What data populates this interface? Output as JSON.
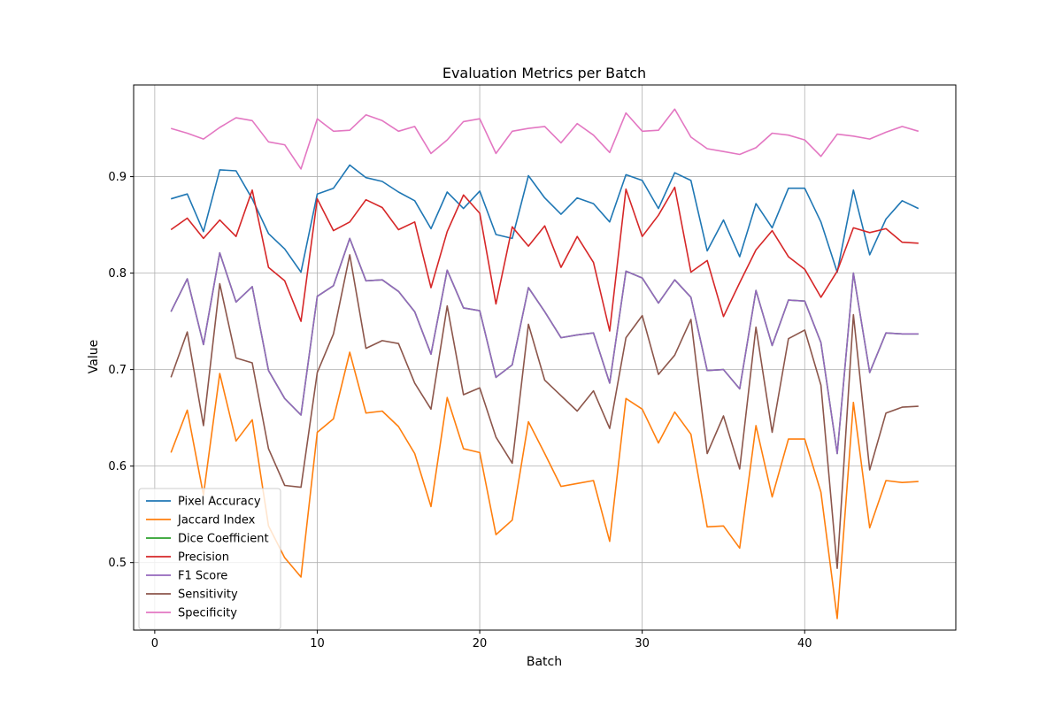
{
  "chart_data": {
    "type": "line",
    "title": "Evaluation Metrics per Batch",
    "xlabel": "Batch",
    "ylabel": "Value",
    "xlim": [
      -1.3,
      49.3
    ],
    "ylim": [
      0.43,
      0.995
    ],
    "xticks": [
      0,
      10,
      20,
      30,
      40
    ],
    "yticks": [
      0.5,
      0.6,
      0.7,
      0.8,
      0.9
    ],
    "ytick_labels": [
      "0.5",
      "0.6",
      "0.7",
      "0.8",
      "0.9"
    ],
    "grid": true,
    "legend_position": "lower-left",
    "x": [
      1,
      2,
      3,
      4,
      5,
      6,
      7,
      8,
      9,
      10,
      11,
      12,
      13,
      14,
      15,
      16,
      17,
      18,
      19,
      20,
      21,
      22,
      23,
      24,
      25,
      26,
      27,
      28,
      29,
      30,
      31,
      32,
      33,
      34,
      35,
      36,
      37,
      38,
      39,
      40,
      41,
      42,
      43,
      44,
      45,
      46,
      47
    ],
    "series": [
      {
        "name": "Pixel Accuracy",
        "color": "#1f77b4",
        "values": [
          0.877,
          0.882,
          0.843,
          0.907,
          0.906,
          0.877,
          0.841,
          0.825,
          0.801,
          0.882,
          0.888,
          0.912,
          0.899,
          0.895,
          0.884,
          0.875,
          0.846,
          0.884,
          0.867,
          0.885,
          0.84,
          0.836,
          0.901,
          0.878,
          0.861,
          0.878,
          0.872,
          0.853,
          0.902,
          0.896,
          0.867,
          0.904,
          0.896,
          0.823,
          0.855,
          0.817,
          0.872,
          0.847,
          0.888,
          0.888,
          0.853,
          0.801,
          0.886,
          0.819,
          0.856,
          0.875,
          0.867
        ]
      },
      {
        "name": "Jaccard Index",
        "color": "#ff7f0e",
        "values": [
          0.614,
          0.658,
          0.57,
          0.696,
          0.626,
          0.648,
          0.538,
          0.505,
          0.485,
          0.635,
          0.649,
          0.718,
          0.655,
          0.657,
          0.641,
          0.613,
          0.558,
          0.671,
          0.618,
          0.614,
          0.529,
          0.544,
          0.646,
          0.613,
          0.579,
          0.582,
          0.585,
          0.522,
          0.67,
          0.659,
          0.624,
          0.656,
          0.633,
          0.537,
          0.538,
          0.515,
          0.642,
          0.568,
          0.628,
          0.628,
          0.573,
          0.442,
          0.666,
          0.536,
          0.585,
          0.583,
          0.584
        ]
      },
      {
        "name": "Dice Coefficient",
        "color": "#2ca02c",
        "values": [
          0.76,
          0.794,
          0.726,
          0.821,
          0.77,
          0.786,
          0.699,
          0.67,
          0.653,
          0.776,
          0.787,
          0.836,
          0.792,
          0.793,
          0.781,
          0.76,
          0.716,
          0.803,
          0.764,
          0.761,
          0.692,
          0.705,
          0.785,
          0.76,
          0.733,
          0.736,
          0.738,
          0.686,
          0.802,
          0.795,
          0.769,
          0.793,
          0.775,
          0.699,
          0.7,
          0.68,
          0.782,
          0.725,
          0.772,
          0.771,
          0.728,
          0.613,
          0.8,
          0.697,
          0.738,
          0.737,
          0.737
        ]
      },
      {
        "name": "Precision",
        "color": "#d62728",
        "values": [
          0.845,
          0.857,
          0.836,
          0.855,
          0.838,
          0.886,
          0.806,
          0.792,
          0.75,
          0.877,
          0.844,
          0.853,
          0.876,
          0.868,
          0.845,
          0.853,
          0.785,
          0.843,
          0.881,
          0.862,
          0.768,
          0.848,
          0.828,
          0.849,
          0.806,
          0.838,
          0.811,
          0.74,
          0.887,
          0.838,
          0.86,
          0.889,
          0.801,
          0.813,
          0.755,
          0.79,
          0.824,
          0.844,
          0.817,
          0.804,
          0.775,
          0.802,
          0.847,
          0.842,
          0.846,
          0.832,
          0.831
        ]
      },
      {
        "name": "F1 Score",
        "color": "#9467bd",
        "values": [
          0.76,
          0.794,
          0.726,
          0.821,
          0.77,
          0.786,
          0.699,
          0.67,
          0.653,
          0.776,
          0.787,
          0.836,
          0.792,
          0.793,
          0.781,
          0.76,
          0.716,
          0.803,
          0.764,
          0.761,
          0.692,
          0.705,
          0.785,
          0.76,
          0.733,
          0.736,
          0.738,
          0.686,
          0.802,
          0.795,
          0.769,
          0.793,
          0.775,
          0.699,
          0.7,
          0.68,
          0.782,
          0.725,
          0.772,
          0.771,
          0.728,
          0.613,
          0.8,
          0.697,
          0.738,
          0.737,
          0.737
        ]
      },
      {
        "name": "Sensitivity",
        "color": "#8c564b",
        "values": [
          0.692,
          0.739,
          0.642,
          0.789,
          0.712,
          0.707,
          0.618,
          0.58,
          0.578,
          0.697,
          0.737,
          0.819,
          0.722,
          0.73,
          0.727,
          0.686,
          0.659,
          0.766,
          0.674,
          0.681,
          0.63,
          0.603,
          0.747,
          0.689,
          0.673,
          0.657,
          0.678,
          0.639,
          0.733,
          0.756,
          0.695,
          0.715,
          0.752,
          0.613,
          0.652,
          0.597,
          0.744,
          0.635,
          0.732,
          0.741,
          0.684,
          0.494,
          0.757,
          0.596,
          0.655,
          0.661,
          0.662
        ]
      },
      {
        "name": "Specificity",
        "color": "#e377c2",
        "values": [
          0.95,
          0.945,
          0.939,
          0.951,
          0.961,
          0.958,
          0.936,
          0.933,
          0.908,
          0.96,
          0.947,
          0.948,
          0.964,
          0.958,
          0.947,
          0.952,
          0.924,
          0.938,
          0.957,
          0.96,
          0.924,
          0.947,
          0.95,
          0.952,
          0.935,
          0.955,
          0.943,
          0.925,
          0.966,
          0.947,
          0.948,
          0.97,
          0.941,
          0.929,
          0.926,
          0.923,
          0.93,
          0.945,
          0.943,
          0.938,
          0.921,
          0.944,
          0.942,
          0.939,
          0.946,
          0.952,
          0.947
        ]
      }
    ]
  }
}
